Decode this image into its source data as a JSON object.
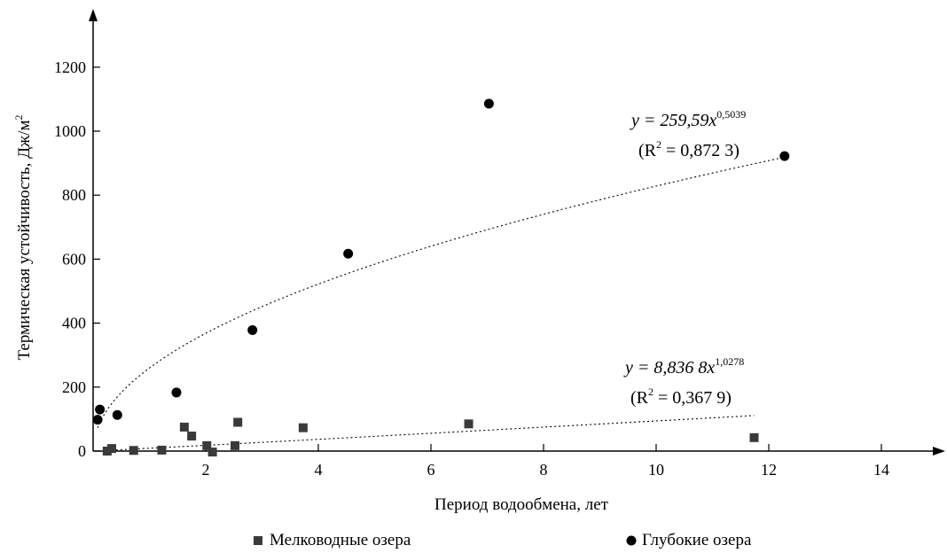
{
  "chart_data": {
    "type": "scatter",
    "xlabel": "Период водообмена, лет",
    "ylabel": "Термическая устойчивость, Дж/м",
    "ylabel_sup": "2",
    "xlim": [
      0,
      15
    ],
    "ylim": [
      0,
      1300
    ],
    "x_ticks": [
      2,
      4,
      6,
      8,
      10,
      12,
      14
    ],
    "y_ticks": [
      0,
      200,
      400,
      600,
      800,
      1000,
      1200
    ],
    "legend_position": "bottom",
    "series": [
      {
        "name": "Мелководные озера",
        "marker": "square",
        "color": "#3a3a3a",
        "x": [
          0.25,
          0.33,
          0.72,
          1.22,
          1.62,
          1.75,
          2.02,
          2.12,
          2.52,
          2.57,
          3.73,
          6.67,
          11.74
        ],
        "y": [
          0,
          8,
          2,
          3,
          75,
          47,
          17,
          -3,
          17,
          90,
          73,
          85,
          42
        ]
      },
      {
        "name": "Глубокие озера",
        "marker": "circle",
        "color": "#000000",
        "x": [
          0.08,
          0.12,
          0.43,
          1.48,
          2.83,
          4.53,
          7.03,
          12.28
        ],
        "y": [
          98,
          130,
          113,
          183,
          378,
          617,
          1086,
          922
        ]
      }
    ],
    "trendlines": [
      {
        "series": "Глубокие озера",
        "coef": 259.59,
        "exp": 0.5039,
        "x_range": [
          0.08,
          12.28
        ],
        "eq_main": "y = 259,59x",
        "eq_sup": "0,5039",
        "r2_prefix": "(R",
        "r2_sup": "2",
        "r2_suffix": " = 0,872 3)"
      },
      {
        "series": "Мелководные озера",
        "coef": 8.8368,
        "exp": 1.0278,
        "x_range": [
          0.25,
          11.74
        ],
        "eq_main": "y = 8,836 8x",
        "eq_sup": "1,0278",
        "r2_prefix": "(R",
        "r2_sup": "2",
        "r2_suffix": " = 0,367 9)"
      }
    ]
  }
}
